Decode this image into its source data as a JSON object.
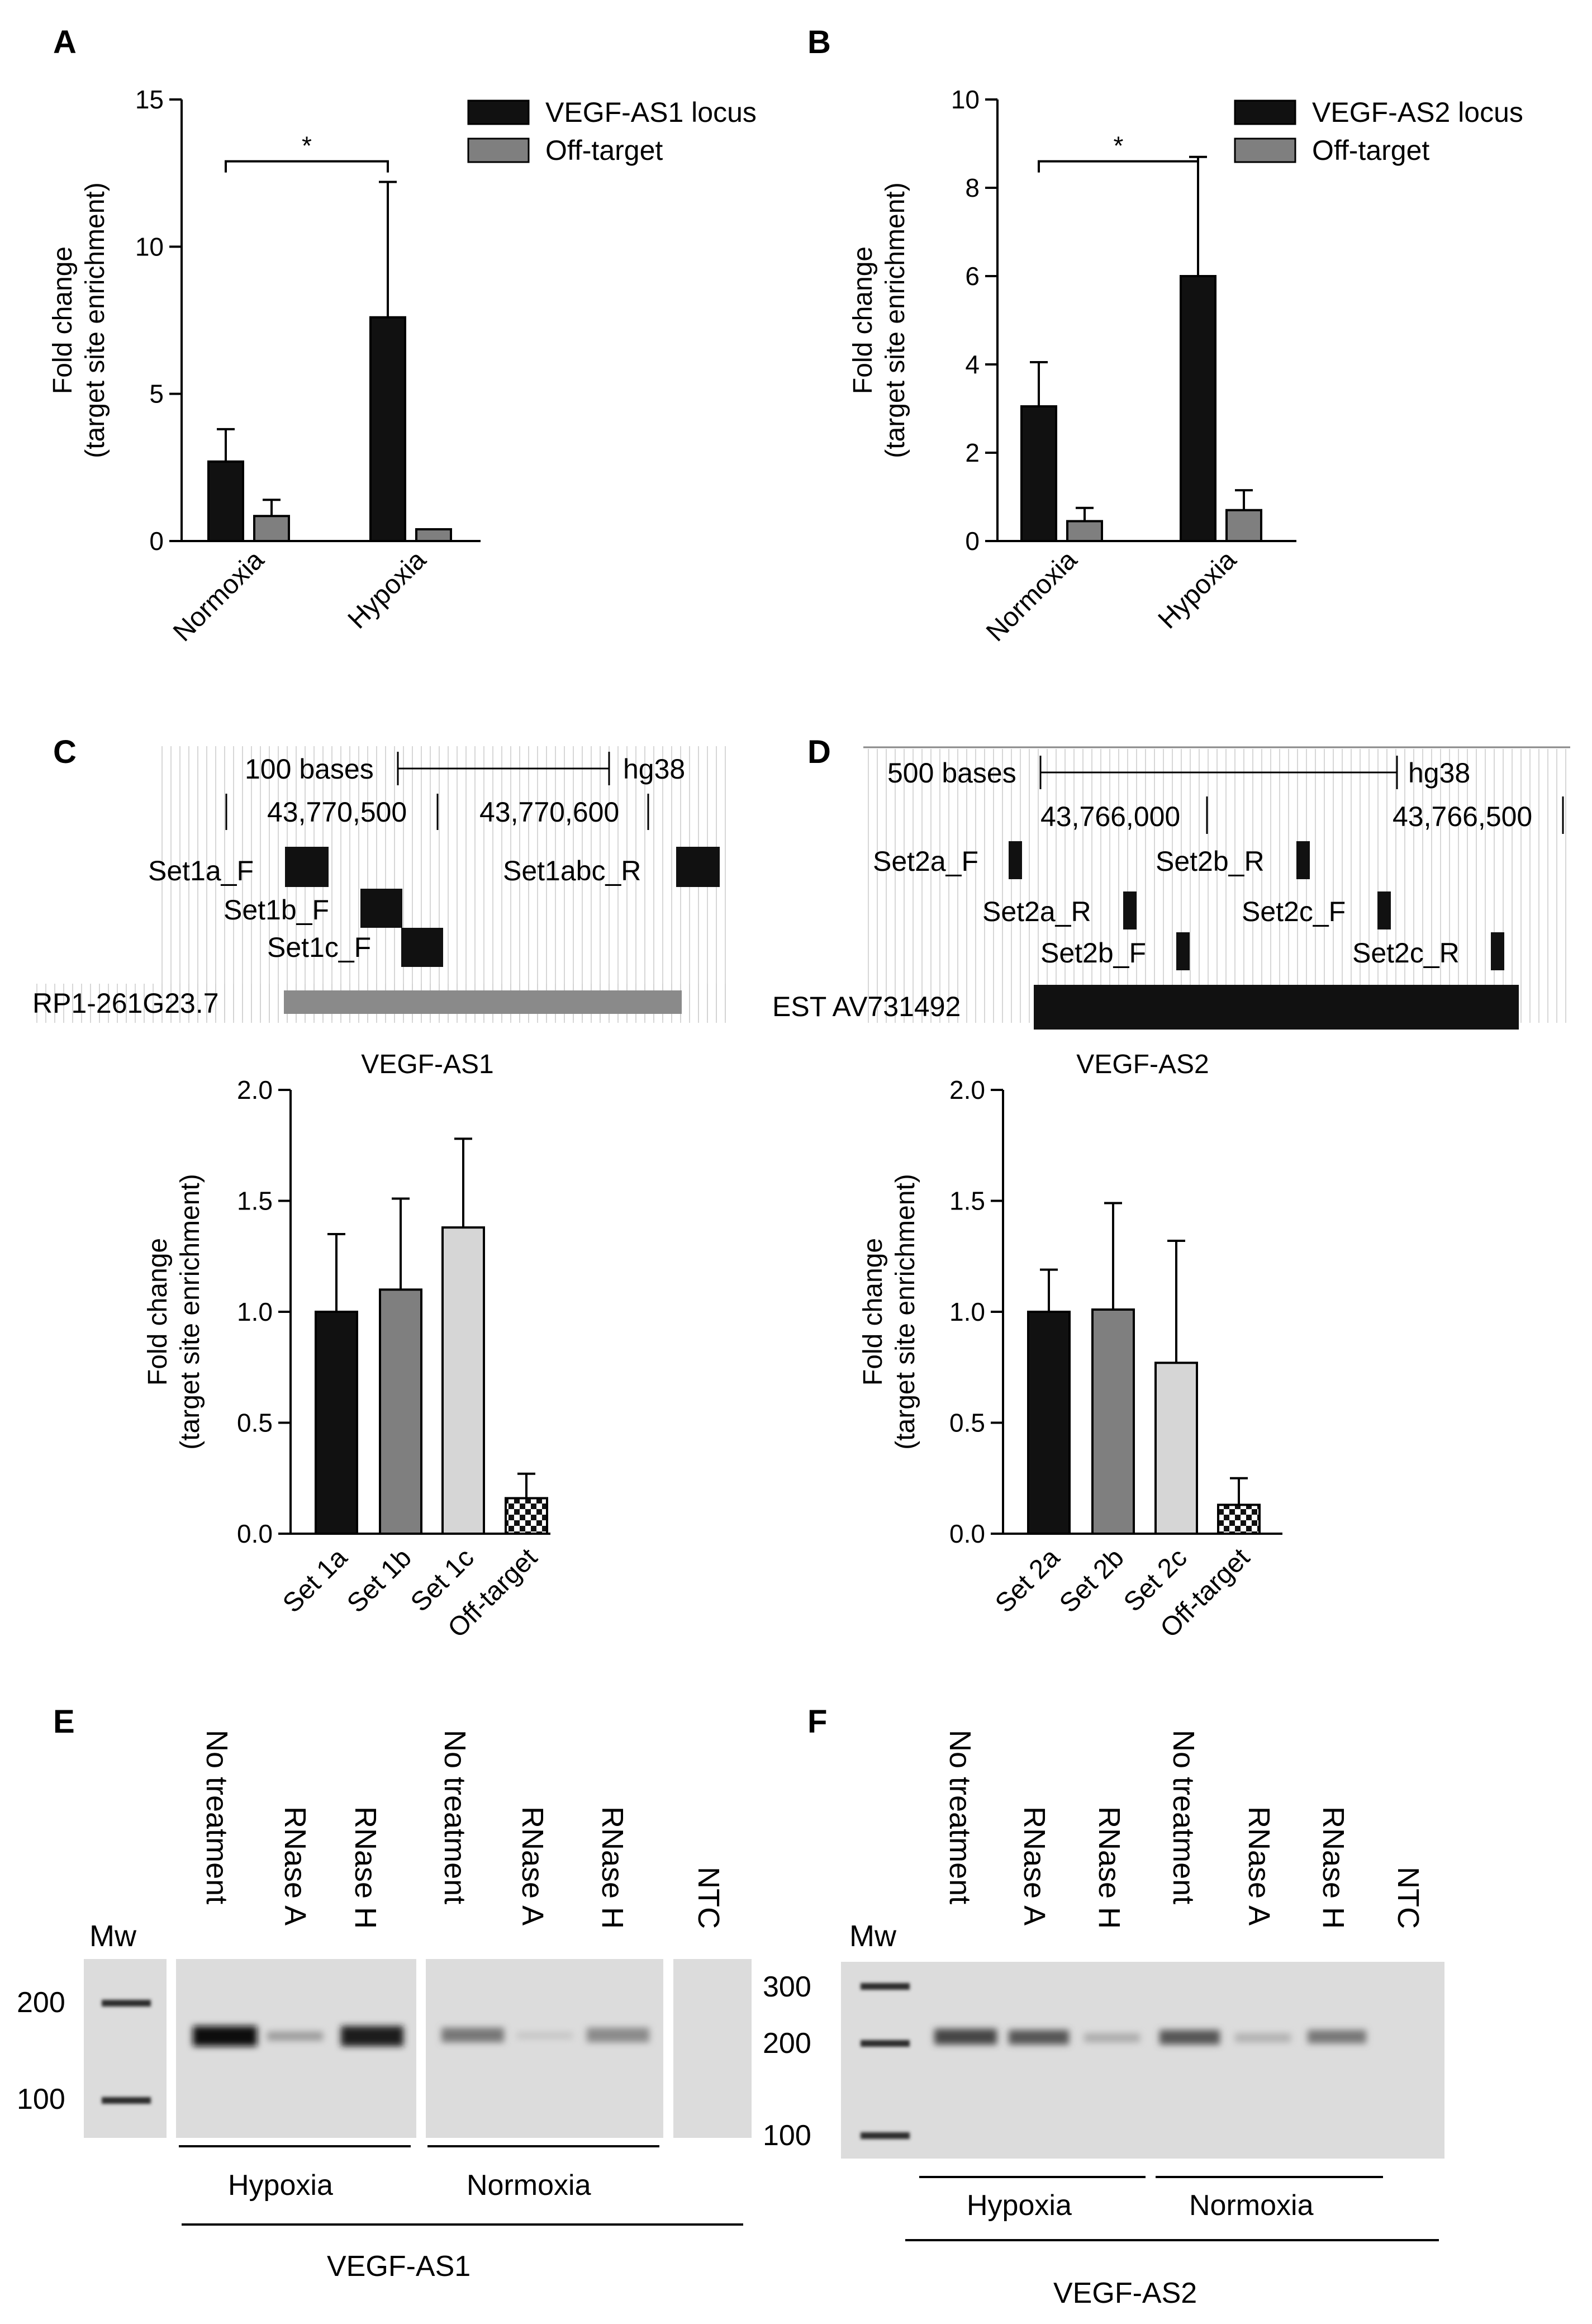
{
  "panels": {
    "A": {
      "label": "A"
    },
    "B": {
      "label": "B"
    },
    "C": {
      "label": "C"
    },
    "D": {
      "label": "D"
    },
    "E": {
      "label": "E"
    },
    "F": {
      "label": "F"
    }
  },
  "colors": {
    "black": "#111111",
    "gray": "#7f7f7f",
    "light": "#d6d6d6",
    "gel_bg": "#dcdcdc",
    "band": "#1a1a1a"
  },
  "chart_data": [
    {
      "id": "A",
      "type": "bar",
      "categories": [
        "Normoxia",
        "Hypoxia"
      ],
      "series": [
        {
          "name": "VEGF-AS1 locus",
          "values": [
            2.7,
            7.6
          ],
          "err": [
            1.1,
            4.6
          ],
          "color": "#111111"
        },
        {
          "name": "Off-target",
          "values": [
            0.85,
            0.4
          ],
          "err": [
            0.55,
            0.0
          ],
          "color": "#7f7f7f"
        }
      ],
      "ylabel": [
        "Fold change",
        "(target site enrichment)"
      ],
      "ylim": [
        0,
        15
      ],
      "yticks": [
        0,
        5,
        10,
        15
      ],
      "significance": {
        "label": "*",
        "between": [
          "Normoxia",
          "Hypoxia"
        ],
        "series": "VEGF-AS1 locus"
      },
      "legend": "top-right"
    },
    {
      "id": "B",
      "type": "bar",
      "categories": [
        "Normoxia",
        "Hypoxia"
      ],
      "series": [
        {
          "name": "VEGF-AS2 locus",
          "values": [
            3.05,
            6.0
          ],
          "err": [
            1.0,
            2.7
          ],
          "color": "#111111"
        },
        {
          "name": "Off-target",
          "values": [
            0.45,
            0.7
          ],
          "err": [
            0.3,
            0.45
          ],
          "color": "#7f7f7f"
        }
      ],
      "ylabel": [
        "Fold change",
        "(target site enrichment)"
      ],
      "ylim": [
        0,
        10
      ],
      "yticks": [
        0,
        2,
        4,
        6,
        8,
        10
      ],
      "significance": {
        "label": "*",
        "between": [
          "Normoxia",
          "Hypoxia"
        ],
        "series": "VEGF-AS2 locus"
      },
      "legend": "top-right"
    },
    {
      "id": "C",
      "type": "bar",
      "title": "VEGF-AS1",
      "categories": [
        "Set 1a",
        "Set 1b",
        "Set 1c",
        "Off-target"
      ],
      "values": [
        1.0,
        1.1,
        1.38,
        0.16
      ],
      "err": [
        0.35,
        0.41,
        0.4,
        0.11
      ],
      "colors": [
        "#111111",
        "#7f7f7f",
        "#d6d6d6",
        "checker"
      ],
      "ylabel": [
        "Fold change",
        "(target site enrichment)"
      ],
      "ylim": [
        0,
        2.0
      ],
      "yticks": [
        "0.0",
        "0.5",
        "1.0",
        "1.5",
        "2.0"
      ]
    },
    {
      "id": "D",
      "type": "bar",
      "title": "VEGF-AS2",
      "categories": [
        "Set 2a",
        "Set 2b",
        "Set 2c",
        "Off-target"
      ],
      "values": [
        1.0,
        1.01,
        0.77,
        0.13
      ],
      "err": [
        0.19,
        0.48,
        0.55,
        0.12
      ],
      "colors": [
        "#111111",
        "#7f7f7f",
        "#d6d6d6",
        "checker"
      ],
      "ylabel": [
        "Fold change",
        "(target site enrichment)"
      ],
      "ylim": [
        0,
        2.0
      ],
      "yticks": [
        "0.0",
        "0.5",
        "1.0",
        "1.5",
        "2.0"
      ]
    }
  ],
  "browser_C": {
    "scale": "100 bases",
    "assembly": "hg38",
    "coord1": "43,770,500",
    "coord2": "43,770,600",
    "primers": [
      "Set1a_F",
      "Set1b_F",
      "Set1c_F",
      "Set1abc_R"
    ],
    "track": "RP1-261G23.7"
  },
  "browser_D": {
    "scale": "500 bases",
    "assembly": "hg38",
    "coord1": "43,766,000",
    "coord2": "43,766,500",
    "primers": [
      "Set2a_F",
      "Set2b_R",
      "Set2a_R",
      "Set2c_F",
      "Set2b_F",
      "Set2c_R"
    ],
    "track": "EST AV731492"
  },
  "gel_E": {
    "lanes": [
      "No treatment",
      "RNase A",
      "RNase H",
      "No treatment",
      "RNase A",
      "RNase H",
      "NTC"
    ],
    "mw_label": "Mw",
    "markers": [
      "200",
      "100"
    ],
    "groups": [
      "Hypoxia",
      "Normoxia"
    ],
    "gene": "VEGF-AS1"
  },
  "gel_F": {
    "lanes": [
      "No treatment",
      "RNase A",
      "RNase H",
      "No treatment",
      "RNase A",
      "RNase H",
      "NTC"
    ],
    "mw_label": "Mw",
    "markers": [
      "300",
      "200",
      "100"
    ],
    "groups": [
      "Hypoxia",
      "Normoxia"
    ],
    "gene": "VEGF-AS2"
  }
}
